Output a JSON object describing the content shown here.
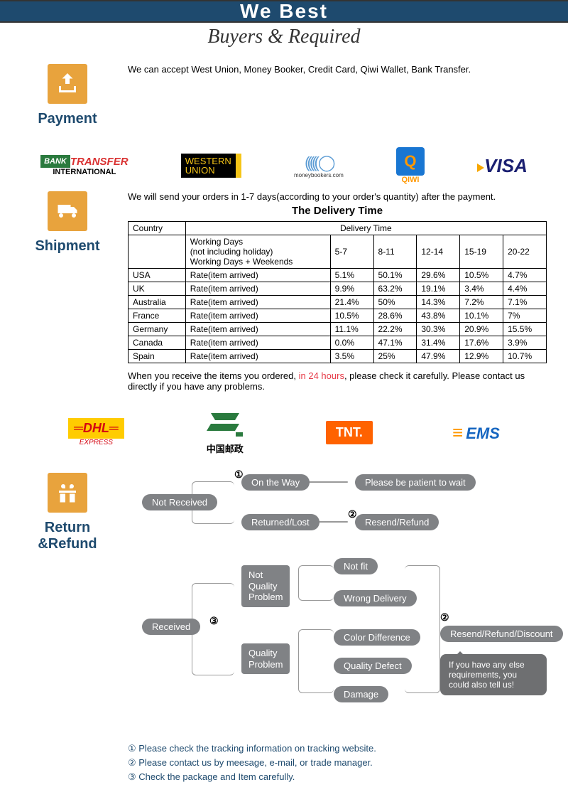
{
  "header": {
    "title": "We   Best",
    "subtitle": "Buyers & Required"
  },
  "colors": {
    "navy": "#1e4a6e",
    "orange": "#e8a33d",
    "gray": "#808285",
    "red": "#e63946"
  },
  "payment": {
    "title": "Payment",
    "text": "We can accept West Union, Money Booker, Credit Card, Qiwi Wallet, Bank Transfer.",
    "logos": {
      "bank_transfer": "BANK TRANSFER",
      "bank_intl": "INTERNATIONAL",
      "western_union": "WESTERN UNION",
      "moneybookers": "moneybookers.com",
      "qiwi": "QIWI",
      "qiwi_q": "Q",
      "visa": "VISA"
    }
  },
  "shipment": {
    "title": "Shipment",
    "intro": "We will send your orders in 1-7 days(according to your order's quantity) after the payment.",
    "table_title": "The Delivery Time",
    "headers": {
      "country": "Country",
      "delivery_time": "Delivery Time"
    },
    "subhead": {
      "working_days": "Working Days\n(not including holiday)\nWorking Days + Weekends",
      "ranges": [
        "5-7",
        "8-11",
        "12-14",
        "15-19",
        "20-22"
      ]
    },
    "rate_label": "Rate(item arrived)",
    "rows": [
      {
        "country": "USA",
        "rates": [
          "5.1%",
          "50.1%",
          "29.6%",
          "10.5%",
          "4.7%"
        ]
      },
      {
        "country": "UK",
        "rates": [
          "9.9%",
          "63.2%",
          "19.1%",
          "3.4%",
          "4.4%"
        ]
      },
      {
        "country": "Australia",
        "rates": [
          "21.4%",
          "50%",
          "14.3%",
          "7.2%",
          "7.1%"
        ]
      },
      {
        "country": "France",
        "rates": [
          "10.5%",
          "28.6%",
          "43.8%",
          "10.1%",
          "7%"
        ]
      },
      {
        "country": "Germany",
        "rates": [
          "11.1%",
          "22.2%",
          "30.3%",
          "20.9%",
          "15.5%"
        ]
      },
      {
        "country": "Canada",
        "rates": [
          "0.0%",
          "47.1%",
          "31.4%",
          "17.6%",
          "3.9%"
        ]
      },
      {
        "country": "Spain",
        "rates": [
          "3.5%",
          "25%",
          "47.9%",
          "12.9%",
          "10.7%"
        ]
      }
    ],
    "note_pre": "When you receive the items you ordered, ",
    "note_hl": "in 24 hours",
    "note_post": ", please check it carefully. Please contact us directly if you have any problems.",
    "logos": {
      "dhl": "DHL",
      "dhl_sub": "EXPRESS",
      "cnpost": "中国邮政",
      "tnt": "TNT.",
      "ems": "EMS"
    }
  },
  "refund": {
    "title": "Return &Refund",
    "nodes": {
      "not_received": "Not Received",
      "on_the_way": "On the Way",
      "returned_lost": "Returned/Lost",
      "patient": "Please be patient to wait",
      "resend_refund": "Resend/Refund",
      "received": "Received",
      "not_quality": "Not\nQuality\nProblem",
      "not_fit": "Not fit",
      "wrong_delivery": "Wrong Delivery",
      "quality": "Quality\nProblem",
      "color_diff": "Color Difference",
      "quality_defect": "Quality Defect",
      "damage": "Damage",
      "resend_discount": "Resend/Refund/Discount",
      "speech": "If you have any else requirements, you could also tell us!",
      "num1": "①",
      "num2": "②",
      "num3": "③"
    },
    "footer": [
      "① Please check the tracking information on tracking website.",
      "② Please contact us by meesage, e-mail, or trade manager.",
      "③ Check the package and Item carefully."
    ]
  }
}
